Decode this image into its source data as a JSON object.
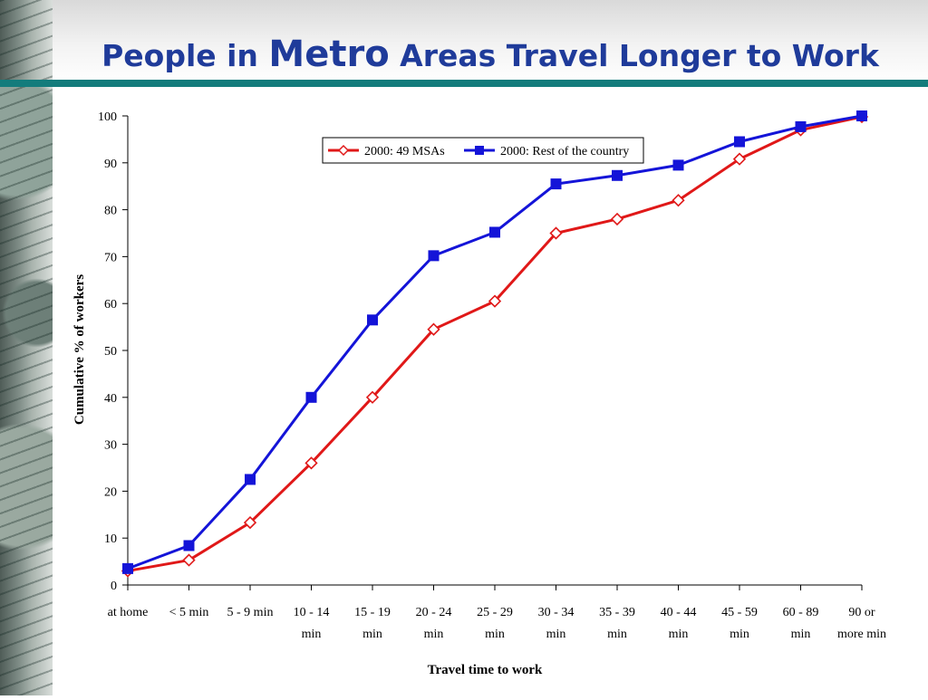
{
  "slide": {
    "title_part1": "People in ",
    "title_emphasis": "Metro",
    "title_part2": " Areas Travel Longer to Work"
  },
  "chart_data": {
    "type": "line",
    "categories": [
      [
        "at home"
      ],
      [
        "< 5 min"
      ],
      [
        "5 - 9 min"
      ],
      [
        "10 - 14",
        "min"
      ],
      [
        "15 - 19",
        "min"
      ],
      [
        "20 - 24",
        "min"
      ],
      [
        "25 - 29",
        "min"
      ],
      [
        "30 - 34",
        "min"
      ],
      [
        "35 - 39",
        "min"
      ],
      [
        "40 - 44",
        "min"
      ],
      [
        "45 - 59",
        "min"
      ],
      [
        "60 - 89",
        "min"
      ],
      [
        "90 or",
        "more min"
      ]
    ],
    "series": [
      {
        "name": "2000: 49 MSAs",
        "color": "#e01818",
        "marker": "diamond-open",
        "values": [
          3.0,
          5.3,
          13.3,
          26.0,
          40.0,
          54.5,
          60.5,
          75.0,
          78.0,
          82.0,
          90.8,
          97.0,
          99.8
        ]
      },
      {
        "name": "2000: Rest of the country",
        "color": "#1414d8",
        "marker": "square-filled",
        "values": [
          3.5,
          8.4,
          22.5,
          40.0,
          56.5,
          70.2,
          75.2,
          85.5,
          87.3,
          89.5,
          94.5,
          97.7,
          100.0
        ]
      }
    ],
    "xlabel": "Travel time to work",
    "ylabel": "Cumulative % of workers",
    "ylim": [
      0,
      100
    ],
    "yticks": [
      0,
      10,
      20,
      30,
      40,
      50,
      60,
      70,
      80,
      90,
      100
    ],
    "grid": false,
    "legend_position": "top-center"
  }
}
